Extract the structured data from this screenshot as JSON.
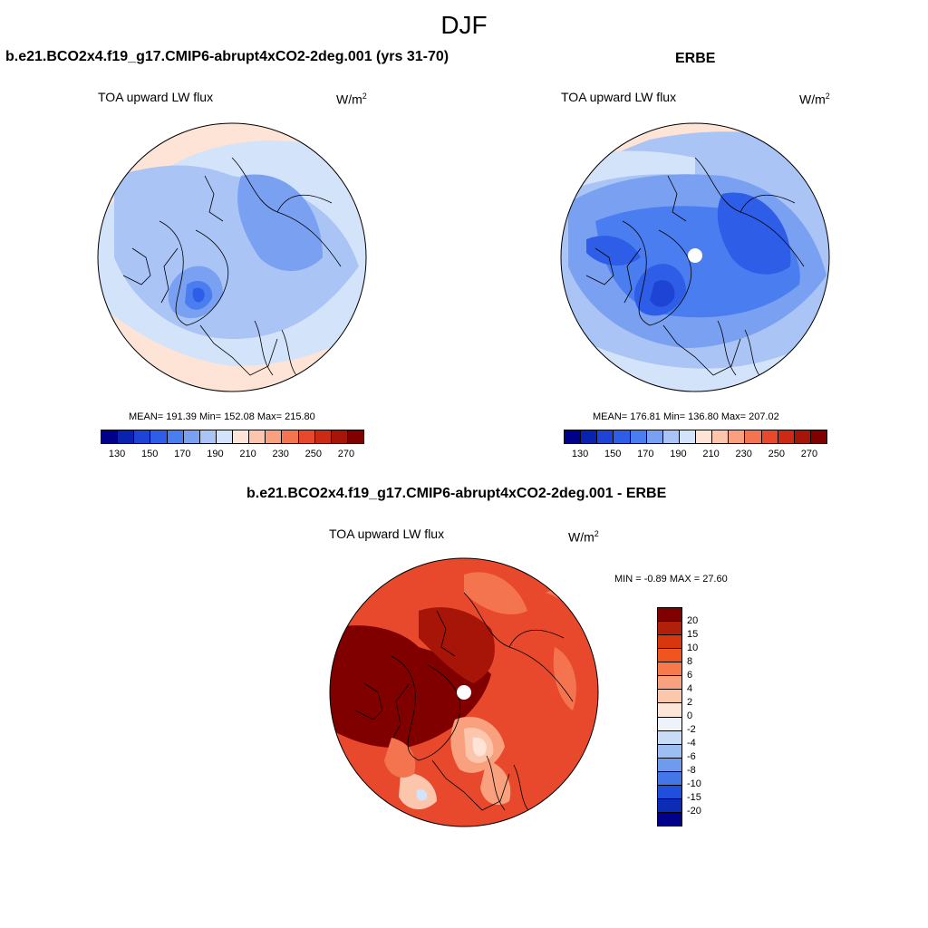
{
  "season": "DJF",
  "panels": {
    "model": {
      "title": "b.e21.BCO2x4.f19_g17.CMIP6-abrupt4xCO2-2deg.001 (yrs 31-70)",
      "variable": "TOA upward LW flux",
      "units_base": "W/m",
      "units_exp": "2",
      "stats": "MEAN= 191.39  Min= 152.08  Max= 215.80"
    },
    "obs": {
      "title": "ERBE",
      "variable": "TOA upward LW flux",
      "units_base": "W/m",
      "units_exp": "2",
      "stats": "MEAN= 176.81  Min= 136.80  Max= 207.02"
    },
    "diff": {
      "title": "b.e21.BCO2x4.f19_g17.CMIP6-abrupt4xCO2-2deg.001 - ERBE",
      "variable": "TOA upward LW flux",
      "units_base": "W/m",
      "units_exp": "2",
      "stats": "MIN =  -0.89 MAX =  27.60"
    }
  },
  "colorbar_abs": {
    "labels": [
      "130",
      "150",
      "170",
      "190",
      "210",
      "230",
      "250",
      "270"
    ],
    "colors": [
      "#00008b",
      "#0a22b0",
      "#1d44d4",
      "#2e5ee8",
      "#4a7ef0",
      "#7aa0f2",
      "#a9c4f5",
      "#d3e3fa",
      "#fde4d6",
      "#fcc6ad",
      "#f9a07e",
      "#f47450",
      "#e8492c",
      "#cc2a15",
      "#a71408",
      "#800000"
    ]
  },
  "colorbar_diff": {
    "labels": [
      "20",
      "15",
      "10",
      "8",
      "6",
      "4",
      "2",
      "0",
      "-2",
      "-4",
      "-6",
      "-8",
      "-10",
      "-15",
      "-20"
    ],
    "colors": [
      "#800000",
      "#b0200a",
      "#d8360d",
      "#f0541f",
      "#f67a4c",
      "#f9a17e",
      "#fbc6ab",
      "#fde6d8",
      "#eef3fb",
      "#c8dcf8",
      "#9dbef3",
      "#6f9bee",
      "#4476e8",
      "#1f4fdc",
      "#0d2cb6",
      "#00008b"
    ]
  }
}
